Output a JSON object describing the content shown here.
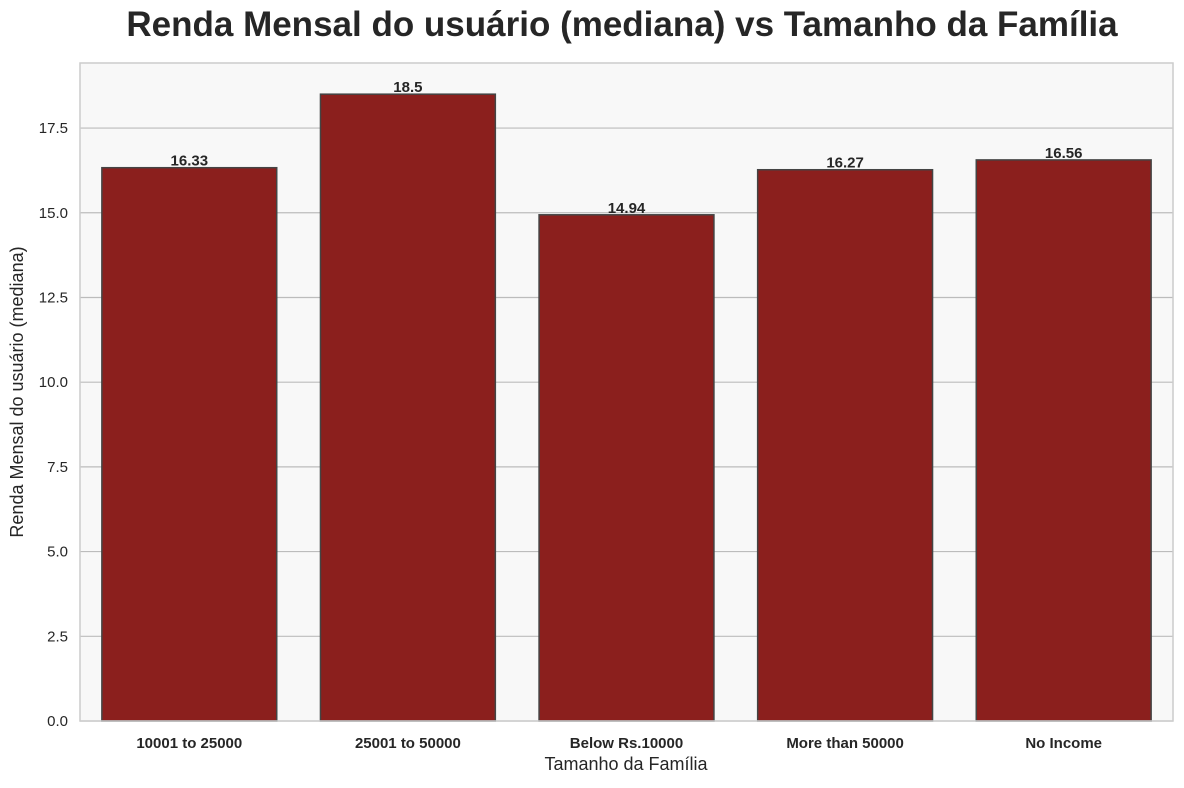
{
  "chart_data": {
    "type": "bar",
    "title": "Renda Mensal do usuário (mediana) vs Tamanho da Família",
    "xlabel": "Tamanho da Família",
    "ylabel": "Renda Mensal do usuário (mediana)",
    "categories": [
      "10001 to 25000",
      "25001 to 50000",
      "Below Rs.10000",
      "More than 50000",
      "No Income"
    ],
    "values": [
      16.33,
      18.5,
      14.94,
      16.27,
      16.56
    ],
    "data_labels": [
      "16.33",
      "18.5",
      "14.94",
      "16.27",
      "16.56"
    ],
    "ylim": [
      0,
      19.42
    ],
    "yticks": [
      0.0,
      2.5,
      5.0,
      7.5,
      10.0,
      12.5,
      15.0,
      17.5
    ],
    "ytick_labels": [
      "0.0",
      "2.5",
      "5.0",
      "7.5",
      "10.0",
      "12.5",
      "15.0",
      "17.5"
    ],
    "grid": "horizontal",
    "colors": {
      "bar": "#8b1f1d",
      "bar_edge": "#444444",
      "plot_background": "#f8f8f8",
      "grid": "#bcbcbc",
      "frame": "#cccccc"
    }
  }
}
